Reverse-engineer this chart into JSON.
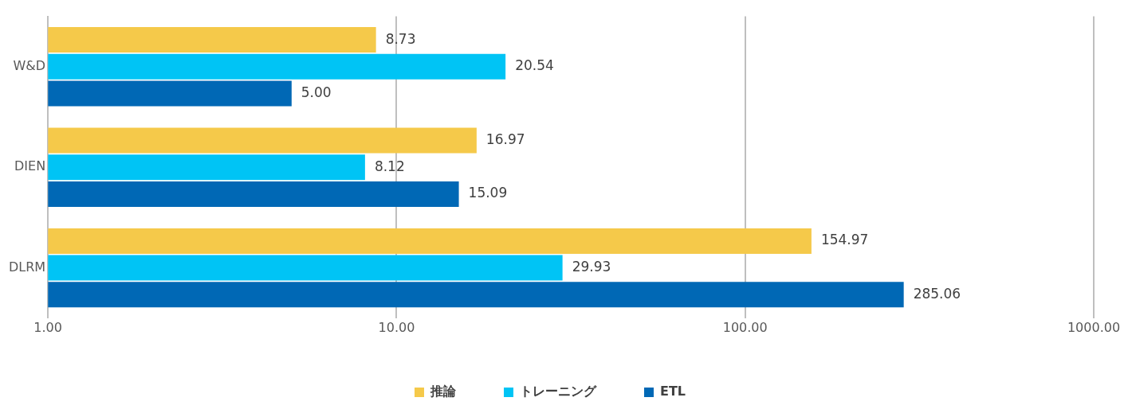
{
  "chart_data": {
    "type": "bar",
    "orientation": "horizontal",
    "log": "x",
    "categories": [
      "W&D",
      "DIEN",
      "DLRM"
    ],
    "series": [
      {
        "name": "推論",
        "color": "#f5c94a",
        "values": [
          8.73,
          16.97,
          154.97
        ],
        "value_labels": [
          "8.73",
          "16.97",
          "154.97"
        ]
      },
      {
        "name": "トレーニング",
        "color": "#00c4f5",
        "values": [
          20.54,
          8.12,
          29.93
        ],
        "value_labels": [
          "20.54",
          "8.12",
          "29.93"
        ]
      },
      {
        "name": "ETL",
        "color": "#0068b5",
        "values": [
          5.0,
          15.09,
          285.06
        ],
        "value_labels": [
          "5.00",
          "15.09",
          "285.06"
        ]
      }
    ],
    "xlim": [
      1,
      1000
    ],
    "xticks": [
      {
        "value": 1,
        "label": "1.00"
      },
      {
        "value": 10,
        "label": "10.00"
      },
      {
        "value": 100,
        "label": "100.00"
      },
      {
        "value": 1000,
        "label": "1000.00"
      }
    ],
    "grid": "x",
    "legend": "bottom"
  }
}
